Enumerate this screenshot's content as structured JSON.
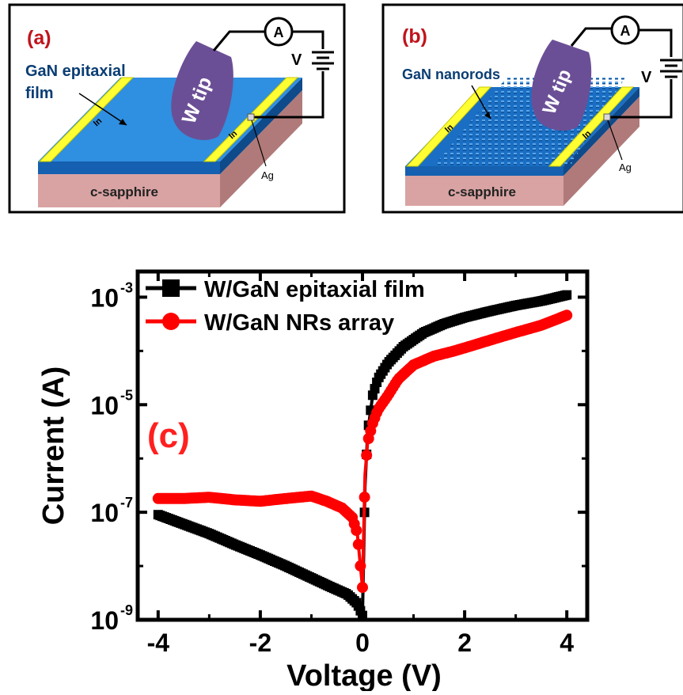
{
  "panel_a": {
    "label": "(a)",
    "film_label_line1": "GaN epitaxial",
    "film_label_line2": "film",
    "tip_label": "W tip",
    "ammeter": "A",
    "voltage": "V",
    "electrode_left": "In",
    "electrode_right": "In",
    "contact": "Ag",
    "substrate": "c-sapphire"
  },
  "panel_b": {
    "label": "(b)",
    "nanorod_label": "GaN nanorods",
    "tip_label": "W tip",
    "ammeter": "A",
    "voltage": "V",
    "electrode_left": "In",
    "electrode_right": "In",
    "contact": "Ag",
    "substrate": "c-sapphire"
  },
  "colors": {
    "black_series": "#000000",
    "red_series": "#ff0000",
    "panel_label": "#c0141c",
    "gan_film": "#1a6fc4",
    "gan_top": "#2f8fe0",
    "sapphire": "#d9a3a3",
    "indium": "#ffff33",
    "tip": "#6b4f96"
  },
  "chart_data": {
    "type": "line",
    "panel_label": "(c)",
    "xlabel": "Voltage (V)",
    "ylabel": "Current (A)",
    "xlim": [
      -4.4,
      4.4
    ],
    "ylim": [
      1e-09,
      0.003
    ],
    "yscale": "log",
    "x_ticks": [
      "-4",
      "-2",
      "0",
      "2",
      "4"
    ],
    "y_ticks": [
      {
        "base": "10",
        "exp": "-9"
      },
      {
        "base": "10",
        "exp": "-7"
      },
      {
        "base": "10",
        "exp": "-5"
      },
      {
        "base": "10",
        "exp": "-3"
      }
    ],
    "legend_position": "top-left",
    "series": [
      {
        "name": "W/GaN epitaxial film",
        "color": "#000000",
        "marker": "square",
        "x": [
          -4.0,
          -3.5,
          -3.0,
          -2.5,
          -2.0,
          -1.5,
          -1.0,
          -0.6,
          -0.3,
          -0.1,
          0.0,
          0.05,
          0.1,
          0.2,
          0.3,
          0.5,
          0.8,
          1.2,
          1.6,
          2.0,
          2.5,
          3.0,
          3.5,
          4.0
        ],
        "y": [
          9e-08,
          6e-08,
          4e-08,
          2.5e-08,
          1.6e-08,
          1e-08,
          6e-09,
          4e-09,
          3e-09,
          2e-09,
          1.2e-09,
          3e-07,
          3e-06,
          1.5e-05,
          3e-05,
          6e-05,
          0.00012,
          0.00022,
          0.00032,
          0.00042,
          0.00055,
          0.0007,
          0.00085,
          0.0011
        ]
      },
      {
        "name": "W/GaN NRs array",
        "color": "#ff0000",
        "marker": "circle",
        "x": [
          -4.0,
          -3.5,
          -3.0,
          -2.5,
          -2.0,
          -1.5,
          -1.0,
          -0.7,
          -0.4,
          -0.2,
          -0.1,
          0.0,
          0.05,
          0.1,
          0.2,
          0.3,
          0.5,
          0.7,
          1.0,
          1.4,
          1.8,
          2.2,
          2.6,
          3.0,
          3.5,
          4.0
        ],
        "y": [
          1.8e-07,
          1.8e-07,
          1.9e-07,
          1.7e-07,
          1.6e-07,
          1.8e-07,
          2e-07,
          1.6e-07,
          1.2e-07,
          8e-08,
          4e-08,
          4e-09,
          5e-07,
          2e-06,
          4.5e-06,
          8e-06,
          1.5e-05,
          3e-05,
          5.5e-05,
          8e-05,
          0.0001,
          0.00013,
          0.00017,
          0.00022,
          0.0003,
          0.00046
        ]
      }
    ]
  }
}
